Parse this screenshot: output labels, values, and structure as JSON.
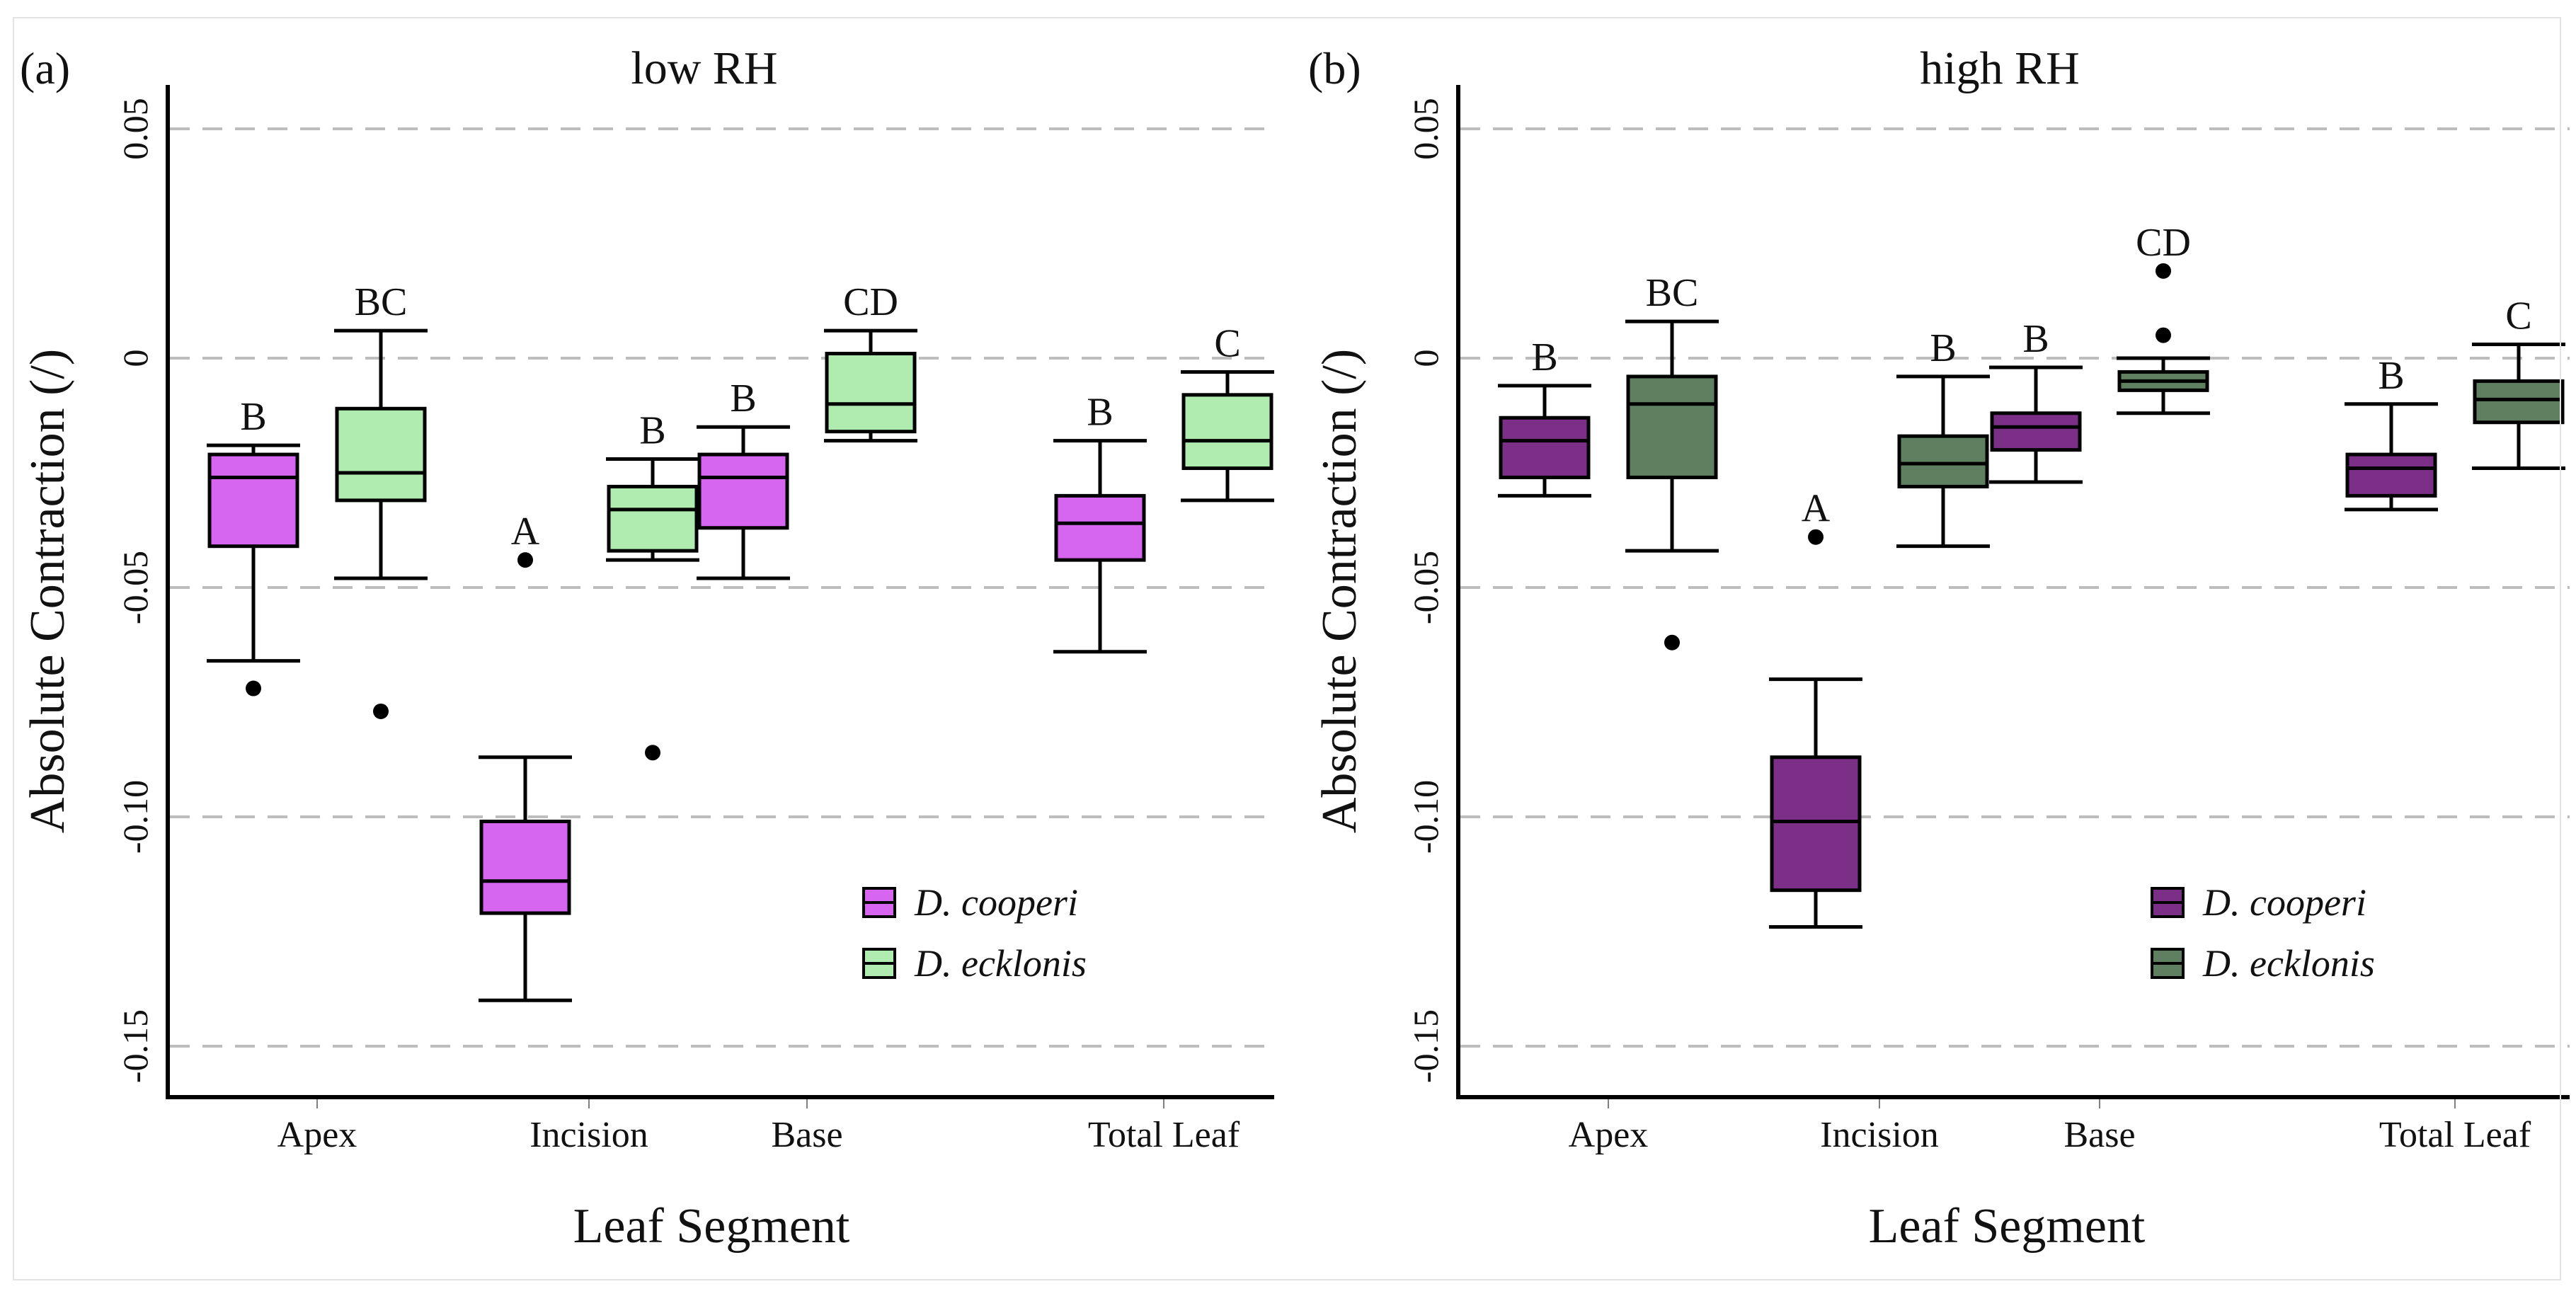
{
  "chart_data": [
    {
      "type": "boxplot",
      "panel_label": "(a)",
      "title": "low RH",
      "xlabel": "Leaf Segment",
      "ylabel": "Absolute Contraction (/)",
      "ylim": [
        -0.15,
        0.05
      ],
      "yticks": [
        0.05,
        0,
        -0.05,
        -0.1,
        -0.15
      ],
      "ytick_labels": [
        "0.05",
        "0",
        "-0.05",
        "-0.10",
        "-0.15"
      ],
      "grid": "horizontal dashed",
      "categories": [
        "Apex",
        "Incision",
        "Base",
        "Total Leaf"
      ],
      "legend_position": "bottom-right",
      "series": [
        {
          "name": "D. cooperi",
          "color": "#d666f0",
          "boxes": [
            {
              "whisker_low": -0.066,
              "q1": -0.041,
              "median": -0.026,
              "q3": -0.021,
              "whisker_high": -0.019,
              "outliers": [
                -0.072
              ],
              "letter": "B"
            },
            {
              "whisker_low": -0.14,
              "q1": -0.121,
              "median": -0.114,
              "q3": -0.101,
              "whisker_high": -0.087,
              "outliers": [
                -0.044
              ],
              "letter": "A"
            },
            {
              "whisker_low": -0.048,
              "q1": -0.037,
              "median": -0.026,
              "q3": -0.021,
              "whisker_high": -0.015,
              "outliers": [],
              "letter": "B"
            },
            {
              "whisker_low": -0.064,
              "q1": -0.044,
              "median": -0.036,
              "q3": -0.03,
              "whisker_high": -0.018,
              "outliers": [],
              "letter": "B"
            }
          ]
        },
        {
          "name": "D. ecklonis",
          "color": "#b0ecb0",
          "boxes": [
            {
              "whisker_low": -0.048,
              "q1": -0.031,
              "median": -0.025,
              "q3": -0.011,
              "whisker_high": 0.006,
              "outliers": [
                -0.077
              ],
              "letter": "BC"
            },
            {
              "whisker_low": -0.044,
              "q1": -0.042,
              "median": -0.033,
              "q3": -0.028,
              "whisker_high": -0.022,
              "outliers": [
                -0.086
              ],
              "letter": "B"
            },
            {
              "whisker_low": -0.018,
              "q1": -0.016,
              "median": -0.01,
              "q3": 0.001,
              "whisker_high": 0.006,
              "outliers": [],
              "letter": "CD"
            },
            {
              "whisker_low": -0.031,
              "q1": -0.024,
              "median": -0.018,
              "q3": -0.008,
              "whisker_high": -0.003,
              "outliers": [],
              "letter": "C"
            }
          ]
        }
      ]
    },
    {
      "type": "boxplot",
      "panel_label": "(b)",
      "title": "high RH",
      "xlabel": "Leaf Segment",
      "ylabel": "Absolute Contraction (/)",
      "ylim": [
        -0.15,
        0.05
      ],
      "yticks": [
        0.05,
        0,
        -0.05,
        -0.1,
        -0.15
      ],
      "ytick_labels": [
        "0.05",
        "0",
        "-0.05",
        "-0.10",
        "-0.15"
      ],
      "grid": "horizontal dashed",
      "categories": [
        "Apex",
        "Incision",
        "Base",
        "Total Leaf"
      ],
      "legend_position": "bottom-right",
      "series": [
        {
          "name": "D. cooperi",
          "color": "#7b2f87",
          "boxes": [
            {
              "whisker_low": -0.03,
              "q1": -0.026,
              "median": -0.018,
              "q3": -0.013,
              "whisker_high": -0.006,
              "outliers": [],
              "letter": "B"
            },
            {
              "whisker_low": -0.124,
              "q1": -0.116,
              "median": -0.101,
              "q3": -0.087,
              "whisker_high": -0.07,
              "outliers": [
                -0.039
              ],
              "letter": "A"
            },
            {
              "whisker_low": -0.027,
              "q1": -0.02,
              "median": -0.015,
              "q3": -0.012,
              "whisker_high": -0.002,
              "outliers": [],
              "letter": "B"
            },
            {
              "whisker_low": -0.033,
              "q1": -0.03,
              "median": -0.024,
              "q3": -0.021,
              "whisker_high": -0.01,
              "outliers": [],
              "letter": "B"
            }
          ]
        },
        {
          "name": "D. ecklonis",
          "color": "#5e8060",
          "boxes": [
            {
              "whisker_low": -0.042,
              "q1": -0.026,
              "median": -0.01,
              "q3": -0.004,
              "whisker_high": 0.008,
              "outliers": [
                -0.062
              ],
              "letter": "BC"
            },
            {
              "whisker_low": -0.041,
              "q1": -0.028,
              "median": -0.023,
              "q3": -0.017,
              "whisker_high": -0.004,
              "outliers": [],
              "letter": "B"
            },
            {
              "whisker_low": -0.012,
              "q1": -0.007,
              "median": -0.005,
              "q3": -0.003,
              "whisker_high": 0.0,
              "outliers": [
                0.005,
                0.019
              ],
              "letter": "CD"
            },
            {
              "whisker_low": -0.024,
              "q1": -0.014,
              "median": -0.009,
              "q3": -0.005,
              "whisker_high": 0.003,
              "outliers": [],
              "letter": "C"
            }
          ]
        }
      ]
    }
  ]
}
